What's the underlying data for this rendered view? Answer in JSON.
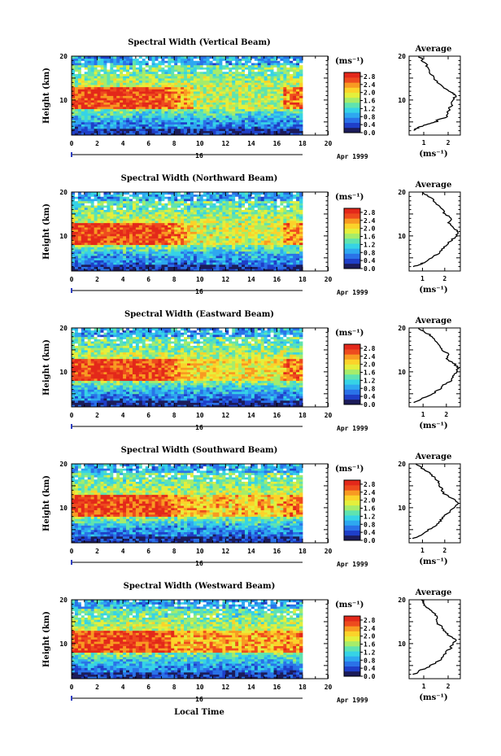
{
  "chart_data": {
    "type": "heatmap",
    "x_label": "Local Time",
    "y_label": "Height (km)",
    "x_ticks": [
      "0",
      "2",
      "4",
      "6",
      "8",
      "10",
      "12",
      "14",
      "16",
      "18",
      "20"
    ],
    "y_ticks": [
      "10",
      "20"
    ],
    "x_range": [
      0,
      20
    ],
    "y_range": [
      2,
      20
    ],
    "date_day": "16",
    "date_month": "Apr 1999",
    "colorbar_unit": "(ms⁻¹)",
    "colorbar_ticks": [
      "0.0",
      "0.4",
      "0.8",
      "1.2",
      "1.6",
      "2.0",
      "2.4",
      "2.8"
    ],
    "colorbar_range": [
      0,
      3.0
    ],
    "profile_title": "Average",
    "profile_unit": "(ms⁻¹)",
    "panels": [
      {
        "title": "Spectral Width (Vertical Beam)",
        "profile_ticks": [
          {
            "label": "1",
            "value": 1
          },
          {
            "label": "2",
            "value": 2
          }
        ],
        "profile_xlim": [
          0.4,
          2.5
        ],
        "profile": [
          [
            3,
            0.6
          ],
          [
            3.5,
            0.7
          ],
          [
            4,
            0.9
          ],
          [
            4.5,
            1.2
          ],
          [
            5,
            1.5
          ],
          [
            5.5,
            1.6
          ],
          [
            6,
            1.9
          ],
          [
            7,
            2.0
          ],
          [
            8,
            2.05
          ],
          [
            9,
            2.15
          ],
          [
            10,
            2.2
          ],
          [
            11,
            2.3
          ],
          [
            11.5,
            2.2
          ],
          [
            12,
            2.0
          ],
          [
            13,
            1.8
          ],
          [
            14,
            1.6
          ],
          [
            15,
            1.4
          ],
          [
            16,
            1.3
          ],
          [
            17,
            1.2
          ],
          [
            18,
            1.1
          ],
          [
            19,
            0.95
          ],
          [
            20,
            0.8
          ]
        ]
      },
      {
        "title": "Spectral Width (Northward Beam)",
        "profile_ticks": [
          {
            "label": "1",
            "value": 1
          },
          {
            "label": "2",
            "value": 2
          }
        ],
        "profile_xlim": [
          0.4,
          2.7
        ],
        "profile": [
          [
            3,
            0.6
          ],
          [
            3.5,
            0.9
          ],
          [
            4,
            1.1
          ],
          [
            5,
            1.4
          ],
          [
            6,
            1.7
          ],
          [
            7,
            1.9
          ],
          [
            8,
            2.1
          ],
          [
            9,
            2.3
          ],
          [
            10,
            2.5
          ],
          [
            11,
            2.6
          ],
          [
            12,
            2.4
          ],
          [
            13,
            2.2
          ],
          [
            14,
            2.3
          ],
          [
            15,
            2.0
          ],
          [
            16,
            1.9
          ],
          [
            17,
            1.7
          ],
          [
            18,
            1.5
          ],
          [
            19,
            1.3
          ],
          [
            20,
            1.0
          ]
        ]
      },
      {
        "title": "Spectral Width (Eastward Beam)",
        "profile_ticks": [
          {
            "label": "1",
            "value": 1
          },
          {
            "label": "2",
            "value": 2
          }
        ],
        "profile_xlim": [
          0.4,
          2.6
        ],
        "profile": [
          [
            3,
            0.6
          ],
          [
            4,
            1.0
          ],
          [
            5,
            1.4
          ],
          [
            6,
            1.7
          ],
          [
            7,
            1.9
          ],
          [
            8,
            2.2
          ],
          [
            9,
            2.3
          ],
          [
            10,
            2.45
          ],
          [
            11,
            2.5
          ],
          [
            12,
            2.3
          ],
          [
            13,
            2.0
          ],
          [
            14,
            2.1
          ],
          [
            15,
            1.8
          ],
          [
            16,
            1.7
          ],
          [
            17,
            1.5
          ],
          [
            18,
            1.4
          ],
          [
            19,
            1.1
          ],
          [
            20,
            0.8
          ]
        ]
      },
      {
        "title": "Spectral Width (Southward Beam)",
        "profile_ticks": [
          {
            "label": "1",
            "value": 1
          },
          {
            "label": "2",
            "value": 2
          }
        ],
        "profile_xlim": [
          0.4,
          2.7
        ],
        "profile": [
          [
            3,
            0.6
          ],
          [
            4,
            1.0
          ],
          [
            5,
            1.3
          ],
          [
            6,
            1.6
          ],
          [
            7,
            1.8
          ],
          [
            8,
            1.95
          ],
          [
            9,
            2.2
          ],
          [
            10,
            2.4
          ],
          [
            11,
            2.6
          ],
          [
            12,
            2.4
          ],
          [
            13,
            2.0
          ],
          [
            14,
            1.9
          ],
          [
            15,
            1.8
          ],
          [
            16,
            1.7
          ],
          [
            17,
            1.5
          ],
          [
            18,
            1.3
          ],
          [
            19,
            1.0
          ],
          [
            20,
            0.7
          ]
        ]
      },
      {
        "title": "Spectral Width (Westward Beam)",
        "profile_ticks": [
          {
            "label": "1",
            "value": 1
          },
          {
            "label": "2",
            "value": 2
          }
        ],
        "profile_xlim": [
          0.4,
          2.5
        ],
        "profile": [
          [
            3,
            0.6
          ],
          [
            4,
            0.9
          ],
          [
            5,
            1.3
          ],
          [
            6,
            1.6
          ],
          [
            7,
            1.8
          ],
          [
            8,
            1.9
          ],
          [
            9,
            2.1
          ],
          [
            10,
            2.2
          ],
          [
            11,
            2.3
          ],
          [
            12,
            2.0
          ],
          [
            13,
            1.8
          ],
          [
            14,
            1.7
          ],
          [
            15,
            1.5
          ],
          [
            16,
            1.6
          ],
          [
            17,
            1.4
          ],
          [
            18,
            1.2
          ],
          [
            19,
            1.0
          ],
          [
            20,
            0.9
          ]
        ]
      }
    ],
    "colors": {
      "scale": [
        "#1c1c5a",
        "#1f3fc8",
        "#2a72e8",
        "#2ea8f0",
        "#36d3e6",
        "#5fe3b0",
        "#a6ec6a",
        "#e4ef3c",
        "#fbd32a",
        "#f89a22",
        "#ee4b1e",
        "#e3281a"
      ]
    }
  }
}
